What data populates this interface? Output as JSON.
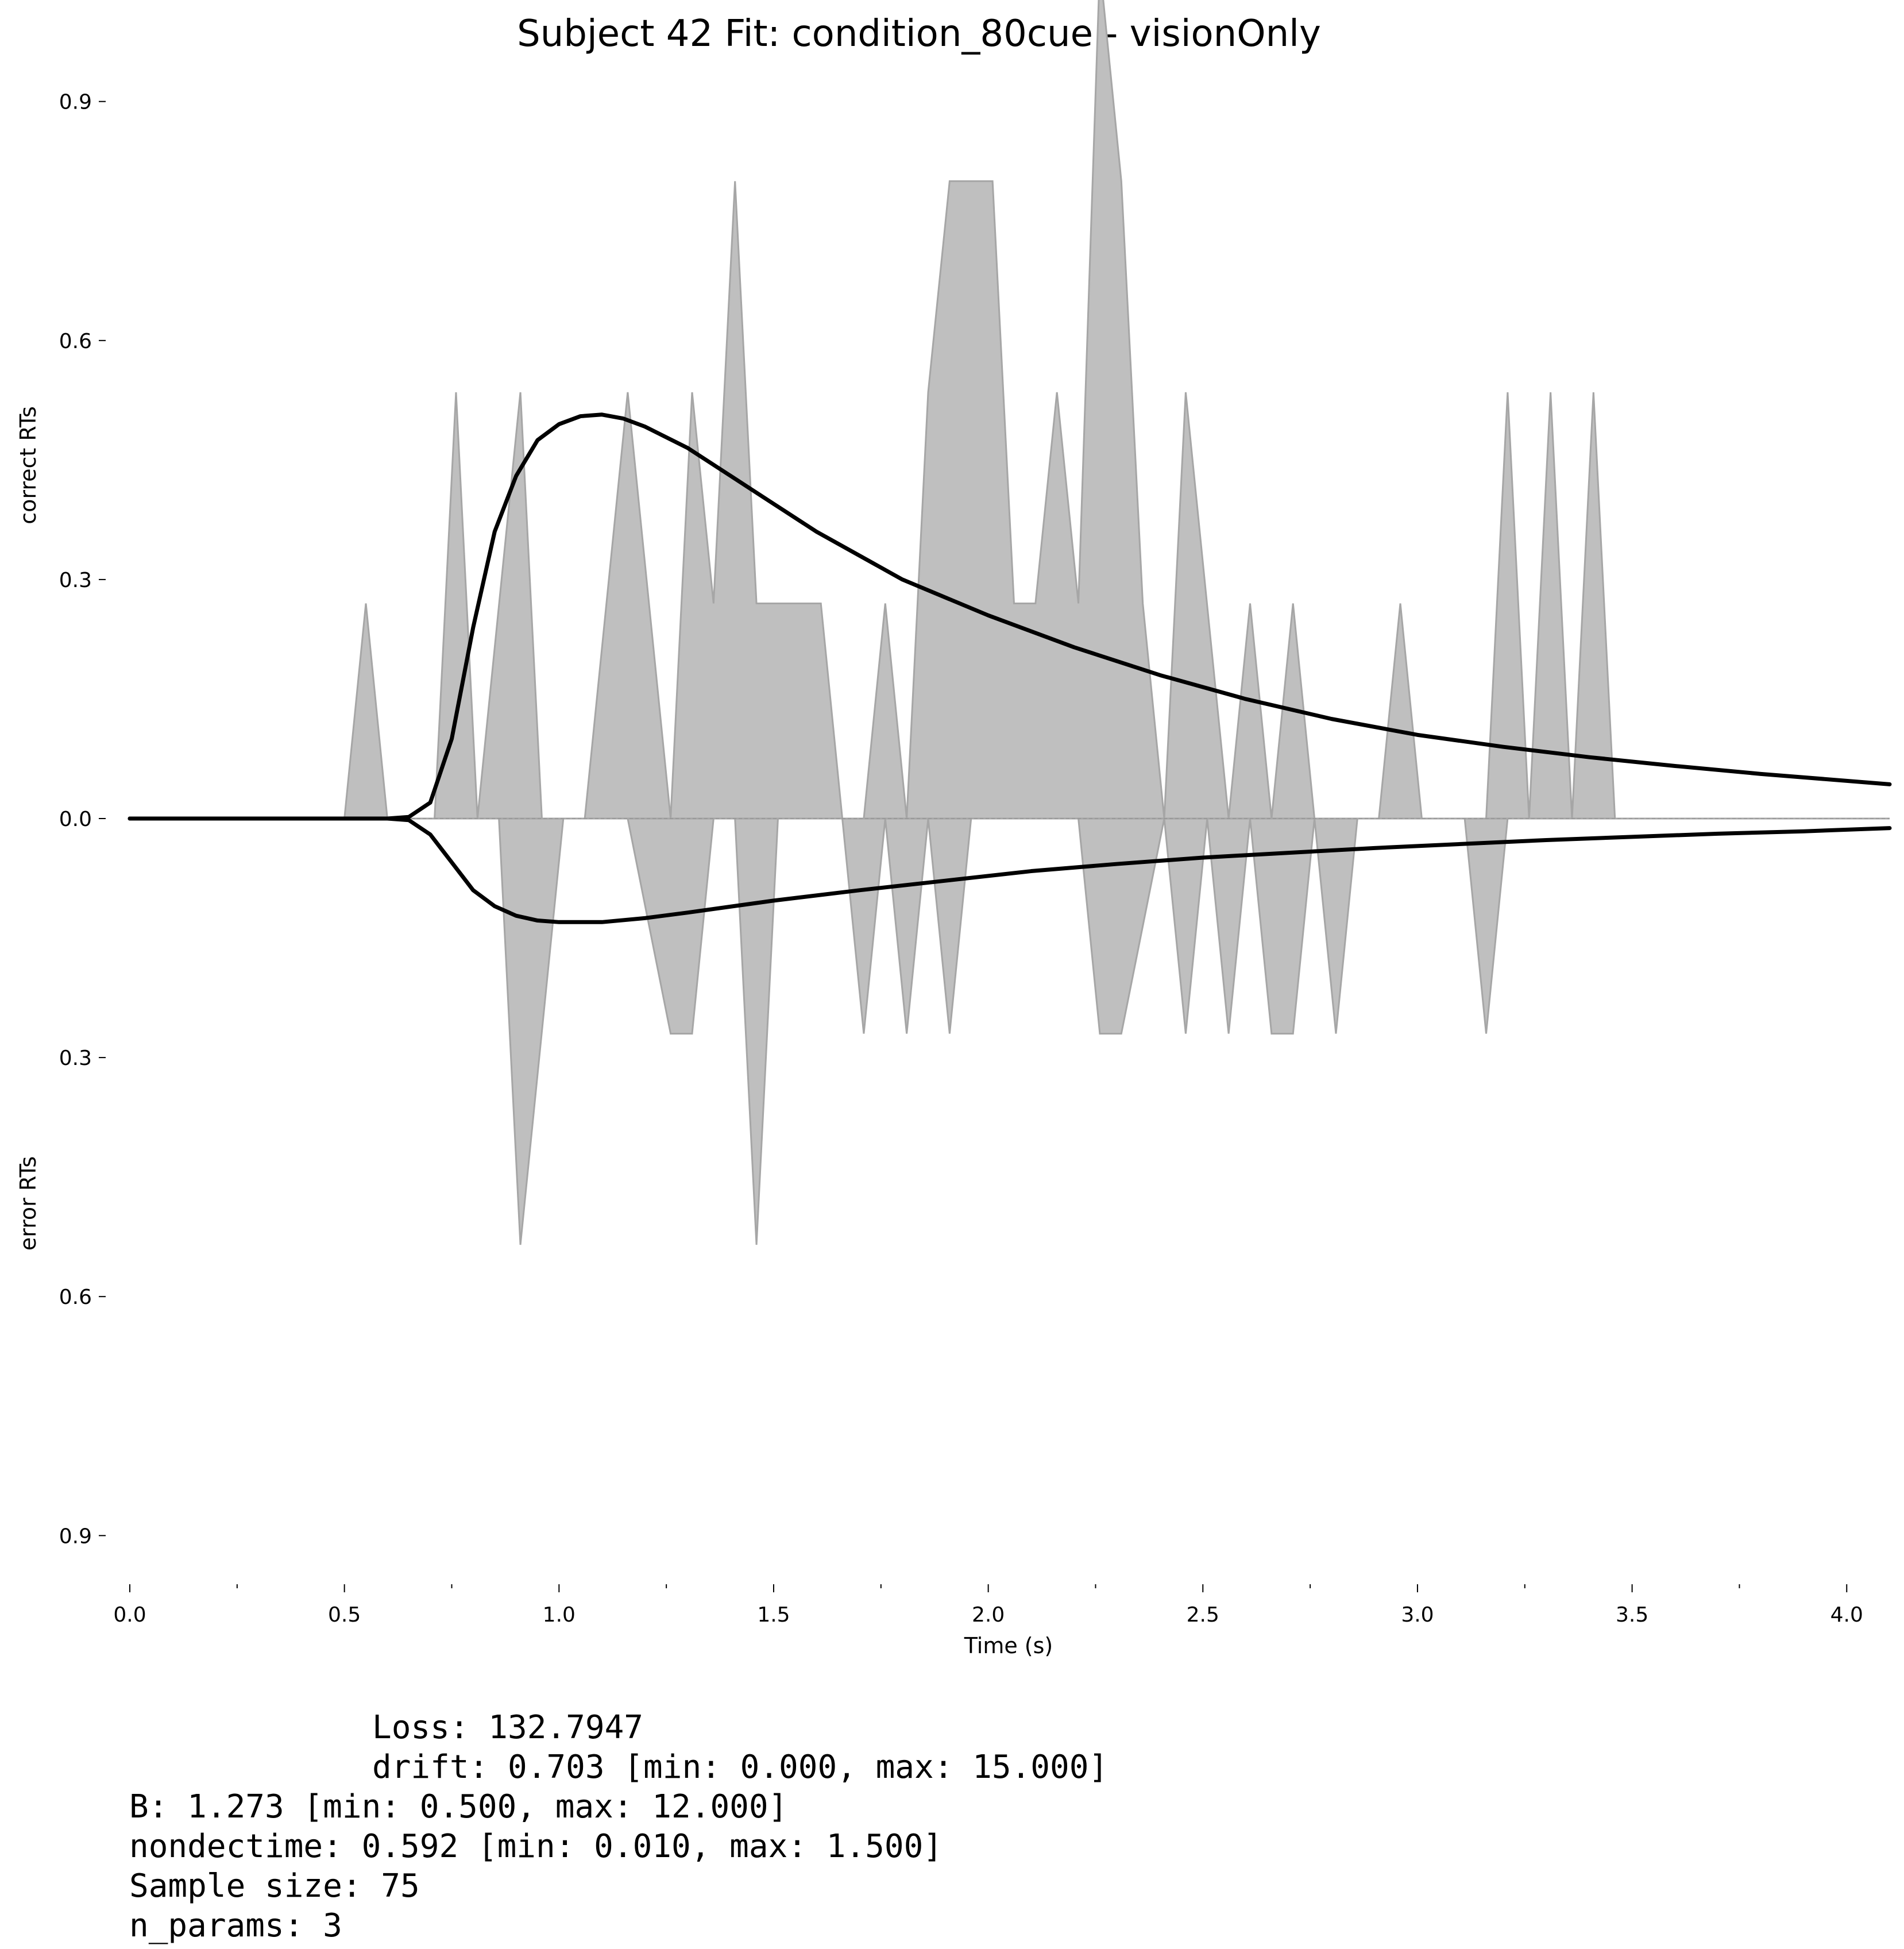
{
  "chart_data": {
    "type": "area",
    "title": "Subject 42 Fit: condition_80cue - visionOnly",
    "xlabel": "Time (s)",
    "ylabel_top": "correct RTs",
    "ylabel_bottom": "error RTs",
    "xlim": [
      0.0,
      4.1
    ],
    "ylim": [
      -1.15,
      1.07
    ],
    "x_ticks": [
      0.0,
      0.5,
      1.0,
      1.5,
      2.0,
      2.5,
      3.0,
      3.5,
      4.0
    ],
    "x_tick_labels": [
      "0.0",
      "0.5",
      "1.0",
      "1.5",
      "2.0",
      "2.5",
      "3.0",
      "3.5",
      "4.0"
    ],
    "x_minor_ticks": [
      0.25,
      0.75,
      1.25,
      1.75,
      2.25,
      2.75,
      3.25,
      3.75
    ],
    "y_ticks": [
      0.9,
      0.6,
      0.3,
      0.0,
      -0.3,
      -0.6,
      -0.9
    ],
    "y_tick_labels": [
      "0.9",
      "0.6",
      "0.3",
      "0.0",
      "0.3",
      "0.6",
      "0.9"
    ],
    "grid": false,
    "zero_line": "dashed",
    "fill_color": "#bfbfbf",
    "fill_edge_color": "#a6a6a6",
    "line_color": "#000000",
    "series": [
      {
        "kind": "histogram",
        "sign": "correct",
        "x": [
          0.0,
          0.5,
          0.55,
          0.6,
          0.71,
          0.76,
          0.81,
          0.91,
          0.96,
          1.06,
          1.16,
          1.26,
          1.31,
          1.36,
          1.41,
          1.46,
          1.61,
          1.66,
          1.71,
          1.76,
          1.81,
          1.86,
          1.91,
          1.96,
          2.01,
          2.06,
          2.11,
          2.16,
          2.21,
          2.26,
          2.31,
          2.36,
          2.41,
          2.46,
          2.56,
          2.61,
          2.66,
          2.71,
          2.76,
          2.91,
          2.96,
          3.01,
          3.16,
          3.21,
          3.26,
          3.31,
          3.36,
          3.41,
          3.46,
          4.1
        ],
        "y": [
          0.0,
          0.0,
          0.27,
          0.0,
          0.0,
          0.535,
          0.0,
          0.535,
          0.0,
          0.0,
          0.535,
          0.0,
          0.535,
          0.27,
          0.8,
          0.27,
          0.27,
          0.0,
          0.0,
          0.27,
          0.0,
          0.535,
          0.8,
          0.8,
          0.8,
          0.27,
          0.27,
          0.535,
          0.27,
          1.07,
          0.8,
          0.27,
          0.0,
          0.535,
          0.0,
          0.27,
          0.0,
          0.27,
          0.0,
          0.0,
          0.27,
          0.0,
          0.0,
          0.535,
          0.0,
          0.535,
          0.0,
          0.535,
          0.0,
          0.0
        ]
      },
      {
        "kind": "histogram",
        "sign": "error",
        "x": [
          0.0,
          0.86,
          0.91,
          1.01,
          1.16,
          1.26,
          1.31,
          1.36,
          1.41,
          1.46,
          1.51,
          1.66,
          1.71,
          1.76,
          1.81,
          1.86,
          1.91,
          1.96,
          2.21,
          2.26,
          2.31,
          2.41,
          2.46,
          2.51,
          2.56,
          2.61,
          2.66,
          2.71,
          2.76,
          2.81,
          2.86,
          3.11,
          3.16,
          3.21,
          4.1
        ],
        "y": [
          0.0,
          0.0,
          0.535,
          0.0,
          0.0,
          0.27,
          0.27,
          0.0,
          0.0,
          0.535,
          0.0,
          0.0,
          0.27,
          0.0,
          0.27,
          0.0,
          0.27,
          0.0,
          0.0,
          0.27,
          0.27,
          0.0,
          0.27,
          0.0,
          0.27,
          0.0,
          0.27,
          0.27,
          0.0,
          0.27,
          0.0,
          0.0,
          0.27,
          0.0,
          0.0
        ]
      },
      {
        "kind": "model",
        "sign": "correct",
        "x": [
          0.0,
          0.6,
          0.65,
          0.7,
          0.75,
          0.8,
          0.85,
          0.9,
          0.95,
          1.0,
          1.05,
          1.1,
          1.15,
          1.2,
          1.3,
          1.4,
          1.5,
          1.6,
          1.8,
          2.0,
          2.2,
          2.4,
          2.6,
          2.8,
          3.0,
          3.2,
          3.4,
          3.6,
          3.8,
          4.1
        ],
        "y": [
          0.0,
          0.0,
          0.002,
          0.02,
          0.1,
          0.24,
          0.36,
          0.43,
          0.475,
          0.495,
          0.505,
          0.507,
          0.502,
          0.492,
          0.465,
          0.43,
          0.395,
          0.36,
          0.3,
          0.255,
          0.215,
          0.18,
          0.15,
          0.125,
          0.105,
          0.09,
          0.077,
          0.066,
          0.056,
          0.043
        ]
      },
      {
        "kind": "model",
        "sign": "error",
        "x": [
          0.0,
          0.6,
          0.65,
          0.7,
          0.75,
          0.8,
          0.85,
          0.9,
          0.95,
          1.0,
          1.1,
          1.2,
          1.3,
          1.5,
          1.7,
          1.9,
          2.1,
          2.3,
          2.5,
          2.7,
          2.9,
          3.1,
          3.3,
          3.5,
          3.7,
          3.9,
          4.1
        ],
        "y": [
          0.0,
          0.0,
          0.002,
          0.02,
          0.055,
          0.09,
          0.11,
          0.122,
          0.128,
          0.13,
          0.13,
          0.125,
          0.118,
          0.103,
          0.09,
          0.078,
          0.066,
          0.057,
          0.049,
          0.043,
          0.037,
          0.032,
          0.027,
          0.023,
          0.019,
          0.016,
          0.012
        ]
      }
    ]
  },
  "fit_summary": {
    "loss": "Loss: 132.7947",
    "drift": "drift: 0.703 [min: 0.000, max: 15.000]",
    "bound": "B: 1.273 [min: 0.500, max: 12.000]",
    "nondectime": "nondectime: 0.592 [min: 0.010, max: 1.500]",
    "sample_size": "Sample size: 75",
    "n_params": "n_params: 3"
  }
}
